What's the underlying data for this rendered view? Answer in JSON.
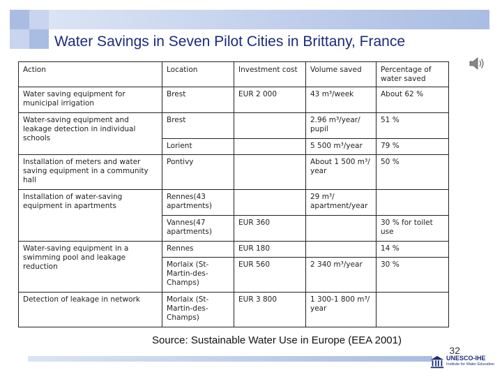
{
  "slide": {
    "title": "Water Savings in Seven Pilot Cities in Brittany, France",
    "source": "Source: Sustainable Water Use in Europe (EEA 2001)",
    "page_number": "32",
    "logo_text": "UNESCO-IHE",
    "logo_subtext": "Institute for Water Education"
  },
  "table": {
    "headers": {
      "action": "Action",
      "location": "Location",
      "investment": "Investment cost",
      "volume": "Volume saved",
      "percentage": "Percentage of water saved"
    },
    "rows": [
      {
        "action": "Water saving equipment for municipal irrigation",
        "location": "Brest",
        "investment": "EUR 2 000",
        "volume": "43 m³/week",
        "percentage": "About 62 %"
      },
      {
        "action": "Water-saving equipment and leakage detection in individual schools",
        "location": "Brest",
        "investment": "",
        "volume": "2.96 m³/year/ pupil",
        "percentage": "51 %"
      },
      {
        "location": "Lorient",
        "investment": "",
        "volume": "5 500 m³/year",
        "percentage": "79 %"
      },
      {
        "action": "Installation of meters and water saving equipment in a community hall",
        "location": "Pontivy",
        "investment": "",
        "volume": "About 1 500 m³/ year",
        "percentage": "50 %"
      },
      {
        "action": "Installation of water-saving equipment in apartments",
        "location": "Rennes(43 apartments)",
        "investment": "",
        "volume": "29 m³/ apartment/year",
        "percentage": ""
      },
      {
        "location": "Vannes(47 apartments)",
        "investment": "EUR 360",
        "volume": "",
        "percentage": "30 % for toilet use"
      },
      {
        "action": "Water-saving equipment in a swimming pool and leakage reduction",
        "location": "Rennes",
        "investment": "EUR 180",
        "volume": "",
        "percentage": "14 %"
      },
      {
        "location": "Morlaix (St-Martin-des-Champs)",
        "investment": "EUR 560",
        "volume": "2 340 m³/year",
        "percentage": "30 %"
      },
      {
        "action": "Detection of leakage in network",
        "location": "Morlaix (St-Martin-des-Champs)",
        "investment": "EUR 3 800",
        "volume": "1 300-1 800 m³/ year",
        "percentage": ""
      }
    ]
  },
  "colors": {
    "title": "#1a2a7a",
    "accent": "#a9bde3",
    "accent_light": "#dbe4f4"
  },
  "icons": {
    "speaker": "speaker-icon",
    "logo": "unesco-temple-icon"
  }
}
